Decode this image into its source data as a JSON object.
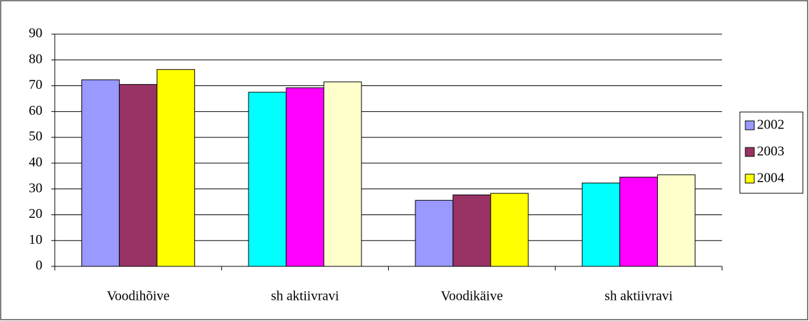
{
  "chart_data": {
    "type": "bar",
    "categories": [
      "Voodihõive",
      "sh aktiivravi",
      "Voodikäive",
      "sh aktiivravi"
    ],
    "series": [
      {
        "name": "2002",
        "color": "#9999ff",
        "point_colors": [
          "#9999ff",
          "#00ffff",
          "#9999ff",
          "#00ffff"
        ],
        "values": [
          72.3,
          67.5,
          25.6,
          32.3
        ]
      },
      {
        "name": "2003",
        "color": "#993366",
        "point_colors": [
          "#993366",
          "#ff00ff",
          "#993366",
          "#ff00ff"
        ],
        "values": [
          70.5,
          69.2,
          27.7,
          34.6
        ]
      },
      {
        "name": "2004",
        "color": "#ffff00",
        "point_colors": [
          "#ffff00",
          "#ffffcc",
          "#ffff00",
          "#ffffcc"
        ],
        "values": [
          76.3,
          71.5,
          28.3,
          35.5
        ]
      }
    ],
    "ylim": [
      0,
      90
    ],
    "yticks": [
      0,
      10,
      20,
      30,
      40,
      50,
      60,
      70,
      80,
      90
    ],
    "grid": true,
    "legend": "right"
  }
}
